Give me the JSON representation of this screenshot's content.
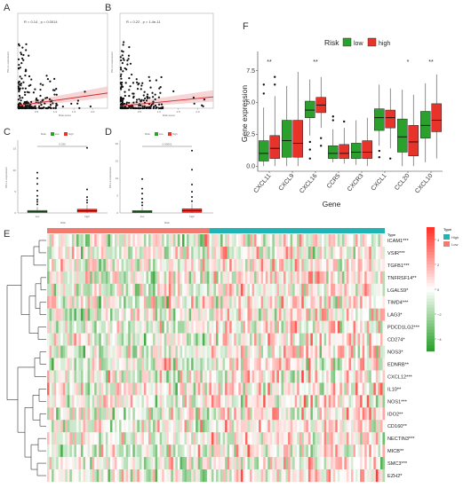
{
  "figure": {
    "panels": {
      "a": "A",
      "b": "B",
      "c": "C",
      "d": "D",
      "e": "E",
      "f": "F"
    }
  },
  "colors": {
    "low": "#2ca02c",
    "high": "#e8332a",
    "type_high": "#1fb5b5",
    "type_low": "#f07b6e",
    "heat_pos": "#e8332a",
    "heat_neg": "#2ca02c"
  },
  "chart_data": [
    {
      "panel": "A",
      "type": "scatter",
      "annotation": "R = 0.14 , p = 0.0014",
      "xlabel": "Risk score",
      "ylabel": "PD-L1 expression",
      "xticks": [
        "0.5",
        "1.0",
        "1.5",
        "2.0"
      ],
      "ylim": [
        0,
        10
      ],
      "xlim": [
        0,
        2.4
      ],
      "fit": {
        "x": [
          0.05,
          2.4
        ],
        "y": [
          0.3,
          1.6
        ]
      }
    },
    {
      "panel": "B",
      "type": "scatter",
      "annotation": "R = 0.22 , p = 1.4e-11",
      "xlabel": "Risk score",
      "ylabel": "PD-L2 expression",
      "xticks": [
        "0.5",
        "1.0",
        "1.5",
        "2.0"
      ],
      "ylim": [
        0,
        20
      ],
      "xlim": [
        0,
        2.4
      ],
      "fit": {
        "x": [
          0.05,
          2.4
        ],
        "y": [
          0.5,
          2.4
        ]
      }
    },
    {
      "panel": "C",
      "type": "box",
      "legend_title": "Risk",
      "series": [
        {
          "name": "low"
        },
        {
          "name": "high"
        }
      ],
      "categories": [
        "low",
        "high"
      ],
      "xlabel": "Risk",
      "ylabel": "PD-L1 expression",
      "yticks": [
        "0",
        "5",
        "10",
        "15"
      ],
      "ylim": [
        0,
        17
      ],
      "pvalue": "0.035",
      "boxes": [
        {
          "q1": 0.1,
          "median": 0.3,
          "q3": 0.6,
          "min": 0,
          "max": 1.4,
          "outliers": [
            2.0,
            2.6,
            3.1,
            4.0,
            5.2,
            6.8,
            8.1,
            9.4
          ]
        },
        {
          "q1": 0.2,
          "median": 0.5,
          "q3": 0.9,
          "min": 0,
          "max": 1.9,
          "outliers": [
            2.4,
            3.0,
            3.7,
            5.5,
            15.2
          ]
        }
      ]
    },
    {
      "panel": "D",
      "type": "box",
      "legend_title": "Risk",
      "series": [
        {
          "name": "low"
        },
        {
          "name": "high"
        }
      ],
      "categories": [
        "low",
        "high"
      ],
      "xlabel": "Risk",
      "ylabel": "PD-L2 expression",
      "yticks": [
        "0",
        "5",
        "10",
        "15",
        "20"
      ],
      "ylim": [
        0,
        21
      ],
      "pvalue": "0.00051",
      "boxes": [
        {
          "q1": 0.1,
          "median": 0.3,
          "q3": 0.7,
          "min": 0,
          "max": 1.6,
          "outliers": [
            2.2,
            3.0,
            4.1,
            5.6,
            7.0,
            9.8
          ]
        },
        {
          "q1": 0.2,
          "median": 0.6,
          "q3": 1.2,
          "min": 0,
          "max": 2.6,
          "outliers": [
            3.4,
            4.6,
            6.1,
            8.2,
            12.5,
            18.0
          ]
        }
      ]
    },
    {
      "panel": "F",
      "type": "box",
      "legend_title": "Risk",
      "series": [
        {
          "name": "low"
        },
        {
          "name": "high"
        }
      ],
      "categories": [
        "CXCL11",
        "CXCL9",
        "CXCL16",
        "CCR5",
        "CXCR3",
        "CXCL1",
        "CCL20",
        "CXCL10"
      ],
      "significance": [
        "**",
        "",
        "**",
        "",
        "",
        "",
        "*",
        "**"
      ],
      "xlabel": "Gene",
      "ylabel": "Gene expression",
      "yticks": [
        "0.0",
        "2.5",
        "5.0",
        "7.5"
      ],
      "ylim": [
        -0.4,
        9.0
      ],
      "low": [
        {
          "min": 0,
          "q1": 0.4,
          "median": 1.0,
          "q3": 2.0,
          "max": 4.6,
          "outliers": [
            5.7,
            6.4
          ]
        },
        {
          "min": 0,
          "q1": 0.7,
          "median": 2.0,
          "q3": 3.6,
          "max": 6.3,
          "outliers": []
        },
        {
          "min": 2.4,
          "q1": 3.8,
          "median": 4.4,
          "q3": 5.1,
          "max": 6.8,
          "outliers": [
            1.9,
            1.3,
            0.6
          ]
        },
        {
          "min": 0.3,
          "q1": 0.6,
          "median": 1.0,
          "q3": 1.6,
          "max": 2.9,
          "outliers": [
            3.6,
            3.9
          ]
        },
        {
          "min": 0.1,
          "q1": 0.6,
          "median": 1.1,
          "q3": 1.8,
          "max": 3.6,
          "outliers": []
        },
        {
          "min": 1.6,
          "q1": 2.8,
          "median": 3.8,
          "q3": 4.5,
          "max": 6.4,
          "outliers": [
            0.7,
            1.2
          ]
        },
        {
          "min": 0,
          "q1": 1.1,
          "median": 2.3,
          "q3": 3.7,
          "max": 6.0,
          "outliers": []
        },
        {
          "min": 0.3,
          "q1": 2.2,
          "median": 3.2,
          "q3": 4.3,
          "max": 6.5,
          "outliers": []
        }
      ],
      "high": [
        {
          "min": 0,
          "q1": 0.6,
          "median": 1.4,
          "q3": 2.4,
          "max": 5.5,
          "outliers": [
            6.4,
            7.0
          ]
        },
        {
          "min": 0,
          "q1": 0.7,
          "median": 1.8,
          "q3": 3.6,
          "max": 7.4,
          "outliers": []
        },
        {
          "min": 3.0,
          "q1": 4.2,
          "median": 4.8,
          "q3": 5.4,
          "max": 7.0,
          "outliers": [
            2.2,
            1.6
          ]
        },
        {
          "min": 0.2,
          "q1": 0.6,
          "median": 1.0,
          "q3": 1.7,
          "max": 3.0,
          "outliers": [
            3.5
          ]
        },
        {
          "min": 0,
          "q1": 0.6,
          "median": 1.1,
          "q3": 2.0,
          "max": 3.8,
          "outliers": []
        },
        {
          "min": 1.4,
          "q1": 3.0,
          "median": 3.8,
          "q3": 4.4,
          "max": 6.1,
          "outliers": [
            0.6
          ]
        },
        {
          "min": 0,
          "q1": 0.8,
          "median": 1.9,
          "q3": 3.2,
          "max": 5.6,
          "outliers": []
        },
        {
          "min": 0.6,
          "q1": 2.7,
          "median": 3.6,
          "q3": 4.9,
          "max": 7.2,
          "outliers": []
        }
      ]
    },
    {
      "panel": "E",
      "type": "heatmap",
      "annotation_title": "Type",
      "genes": [
        "ICAM1***",
        "VSIR***",
        "TGFB1***",
        "TNFRSF14**",
        "LGALS9*",
        "TIMD4***",
        "LAG3*",
        "PDCD1LG2***",
        "CD274*",
        "NOS3*",
        "EDNRB**",
        "CXCL12***",
        "IL10**",
        "NOS1***",
        "IDO2**",
        "CD160**",
        "NECTIN3***",
        "MICB**",
        "SMC3***",
        "EZH2*"
      ],
      "scale_ticks": [
        "4",
        "2",
        "0",
        "−2",
        "−4"
      ],
      "scale_range": [
        -5,
        5
      ],
      "type_legend": [
        {
          "label": "High"
        },
        {
          "label": "Low"
        }
      ],
      "group_split": 0.48
    }
  ]
}
